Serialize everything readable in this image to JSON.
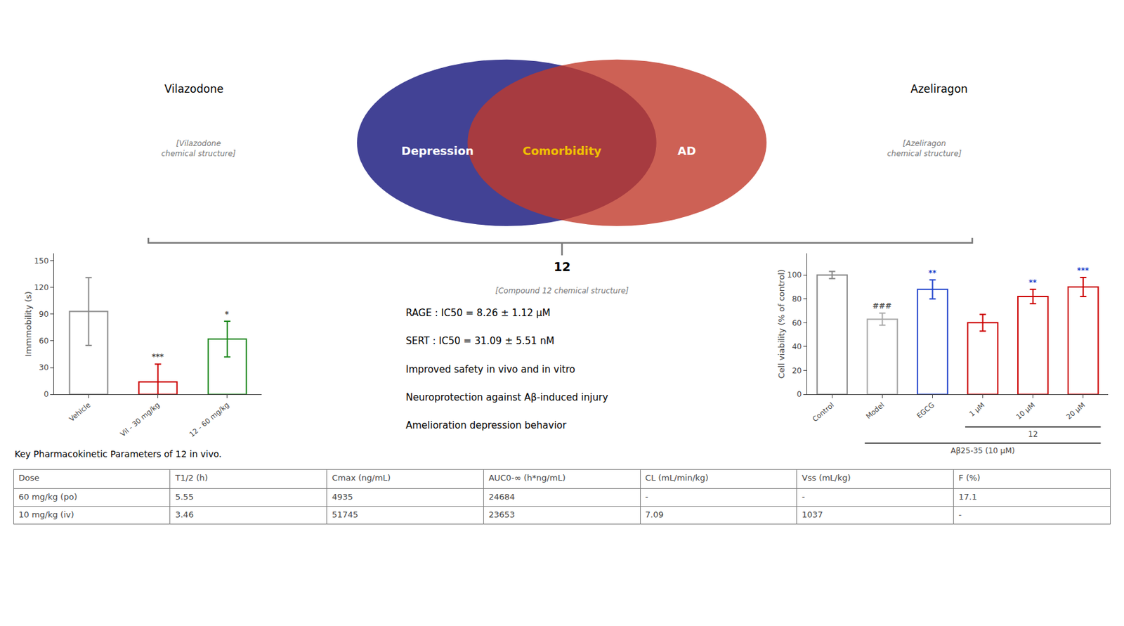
{
  "chart_data": [
    {
      "type": "bar",
      "categories": [
        "Vehicle",
        "Vil - 30 mg/kg",
        "12 - 60 mg/kg"
      ],
      "values": [
        93,
        14,
        62
      ],
      "errors": [
        38,
        20,
        20
      ],
      "colors": [
        "#888888",
        "#cc0000",
        "#228B22"
      ],
      "ylabel": "Immmobility (s)",
      "ylim": [
        0,
        158
      ],
      "yticks": [
        0,
        30,
        60,
        90,
        120,
        150
      ],
      "grid": false,
      "sig_labels": [
        null,
        "***",
        "*"
      ]
    },
    {
      "type": "bar",
      "categories": [
        "Control",
        "Model",
        "EGCG",
        "1 μM",
        "10 μM",
        "20 μM"
      ],
      "values": [
        100,
        63,
        88,
        60,
        82,
        90
      ],
      "errors": [
        3,
        5,
        8,
        7,
        6,
        8
      ],
      "colors": [
        "#888888",
        "#aaaaaa",
        "#2244cc",
        "#cc0000",
        "#cc0000",
        "#cc0000"
      ],
      "ylabel": "Cell viability (% of control)",
      "ylim": [
        0,
        118
      ],
      "yticks": [
        0,
        20,
        40,
        60,
        80,
        100
      ],
      "grid": false,
      "sig_labels": [
        null,
        "###",
        "**",
        null,
        "**",
        "***"
      ],
      "sig_colors": [
        null,
        "#555555",
        "#2244cc",
        null,
        "#2244cc",
        "#2244cc"
      ],
      "groups": [
        {
          "label": "12",
          "from": "1 μM",
          "to": "20 μM"
        },
        {
          "label": "Aβ25-35 (10 μM)",
          "from": "Model",
          "to": "20 μM"
        }
      ]
    },
    {
      "type": "venn",
      "sets": [
        {
          "name": "Depression",
          "color": "#2e2e8a"
        },
        {
          "name": "AD",
          "color": "#c0392b"
        }
      ],
      "intersection": {
        "name": "Comorbidity",
        "color": "#f0c000"
      }
    },
    {
      "type": "table",
      "title": "Key Pharmacokinetic Parameters of 12 in vivo.",
      "columns": [
        "Dose",
        "T1/2 (h)",
        "Cmax (ng/mL)",
        "AUC0-∞ (h*ng/mL)",
        "CL (mL/min/kg)",
        "Vss (mL/kg)",
        "F (%)"
      ],
      "rows": [
        [
          "60 mg/kg (po)",
          "5.55",
          "4935",
          "24684",
          "-",
          "-",
          "17.1"
        ],
        [
          "10 mg/kg (iv)",
          "3.46",
          "51745",
          "23653",
          "7.09",
          "1037",
          "-"
        ]
      ]
    }
  ],
  "annotations": {
    "left_drug": "Vilazodone",
    "right_drug": "Azeliragon",
    "compound": "12",
    "structure_notes": [
      "[Vilazodone\nchemical structure]",
      "[Azeliragon\nchemical structure]",
      "[Compound 12 chemical structure]"
    ],
    "properties": [
      "RAGE : IC50 = 8.26 ± 1.12 μM",
      "SERT : IC50 = 31.09 ± 5.51 nM",
      "Improved safety in vivo and in vitro",
      "Neuroprotection against Aβ-induced injury",
      "Amelioration depression behavior"
    ]
  }
}
